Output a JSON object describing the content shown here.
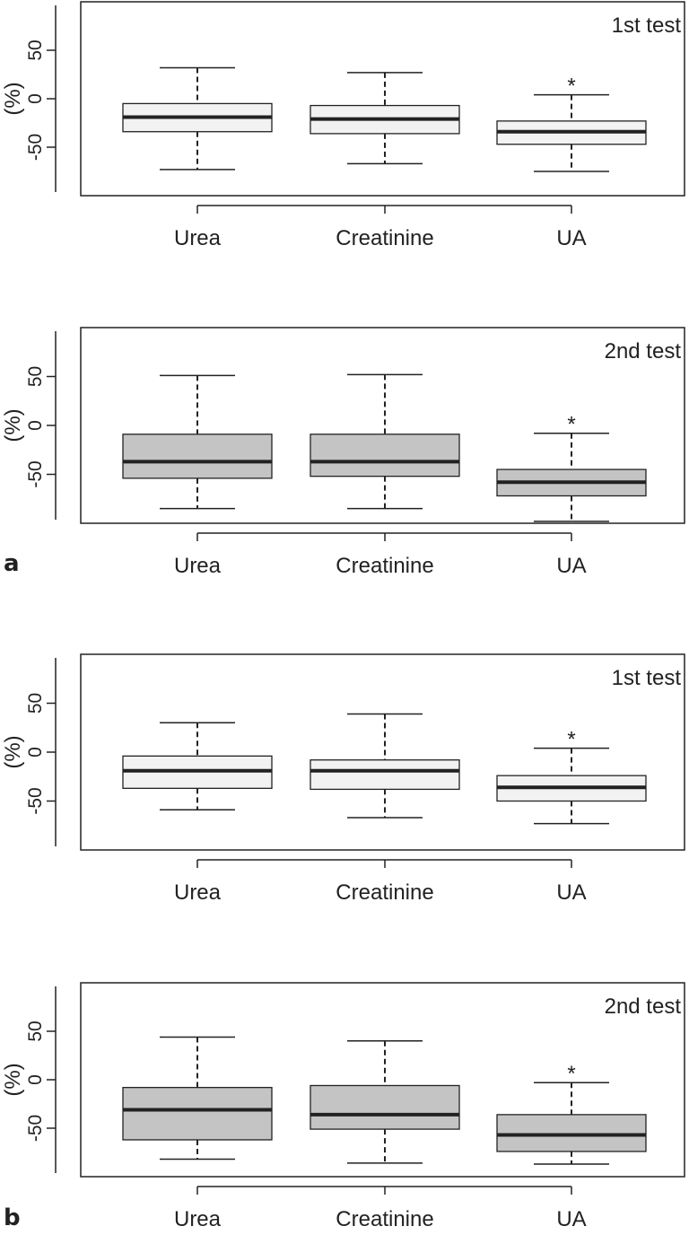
{
  "figure": {
    "panel_labels": [
      "a",
      "b"
    ]
  },
  "chart_data": [
    {
      "type": "boxplot",
      "panel": "a",
      "title": "1st  test",
      "ylabel": "(%)",
      "ylim": [
        -100,
        100
      ],
      "yticks": [
        50,
        0,
        -50
      ],
      "ytick_labels": [
        "50",
        "0",
        "-50"
      ],
      "categories": [
        "Urea",
        "Creatinine",
        "UA"
      ],
      "box_color": "#f2f2f2",
      "boxes": [
        {
          "whisker_low": -73,
          "q1": -34,
          "median": -19,
          "q3": -5,
          "whisker_high": 32
        },
        {
          "whisker_low": -67,
          "q1": -36,
          "median": -21,
          "q3": -7,
          "whisker_high": 27
        },
        {
          "whisker_low": -75,
          "q1": -47,
          "median": -34,
          "q3": -23,
          "whisker_high": 4
        }
      ],
      "significance_marker": "*",
      "significant_category": "UA"
    },
    {
      "type": "boxplot",
      "panel": "a",
      "title": "2nd test",
      "ylabel": "(%)",
      "ylim": [
        -100,
        100
      ],
      "yticks": [
        50,
        0,
        -50
      ],
      "ytick_labels": [
        "50",
        "0",
        "-50"
      ],
      "categories": [
        "Urea",
        "Creatinine",
        "UA"
      ],
      "box_color": "#c4c4c4",
      "boxes": [
        {
          "whisker_low": -85,
          "q1": -54,
          "median": -37,
          "q3": -9,
          "whisker_high": 51
        },
        {
          "whisker_low": -85,
          "q1": -52,
          "median": -37,
          "q3": -9,
          "whisker_high": 52
        },
        {
          "whisker_low": -98,
          "q1": -72,
          "median": -58,
          "q3": -45,
          "whisker_high": -8
        }
      ],
      "significance_marker": "*",
      "significant_category": "UA"
    },
    {
      "type": "boxplot",
      "panel": "b",
      "title": "1st  test",
      "ylabel": "(%)",
      "ylim": [
        -100,
        100
      ],
      "yticks": [
        50,
        0,
        -50
      ],
      "ytick_labels": [
        "50",
        "0",
        "-50"
      ],
      "categories": [
        "Urea",
        "Creatinine",
        "UA"
      ],
      "box_color": "#f2f2f2",
      "boxes": [
        {
          "whisker_low": -59,
          "q1": -37,
          "median": -19,
          "q3": -4,
          "whisker_high": 30
        },
        {
          "whisker_low": -67,
          "q1": -38,
          "median": -19,
          "q3": -8,
          "whisker_high": 39
        },
        {
          "whisker_low": -73,
          "q1": -50,
          "median": -36,
          "q3": -24,
          "whisker_high": 4
        }
      ],
      "significance_marker": "*",
      "significant_category": "UA"
    },
    {
      "type": "boxplot",
      "panel": "b",
      "title": "2nd test",
      "ylabel": "(%)",
      "ylim": [
        -100,
        100
      ],
      "yticks": [
        50,
        0,
        -50
      ],
      "ytick_labels": [
        "50",
        "0",
        "-50"
      ],
      "categories": [
        "Urea",
        "Creatinine",
        "UA"
      ],
      "box_color": "#c4c4c4",
      "boxes": [
        {
          "whisker_low": -82,
          "q1": -62,
          "median": -31,
          "q3": -8,
          "whisker_high": 44
        },
        {
          "whisker_low": -86,
          "q1": -51,
          "median": -36,
          "q3": -6,
          "whisker_high": 40
        },
        {
          "whisker_low": -87,
          "q1": -74,
          "median": -57,
          "q3": -36,
          "whisker_high": -3
        }
      ],
      "significance_marker": "*",
      "significant_category": "UA"
    }
  ]
}
